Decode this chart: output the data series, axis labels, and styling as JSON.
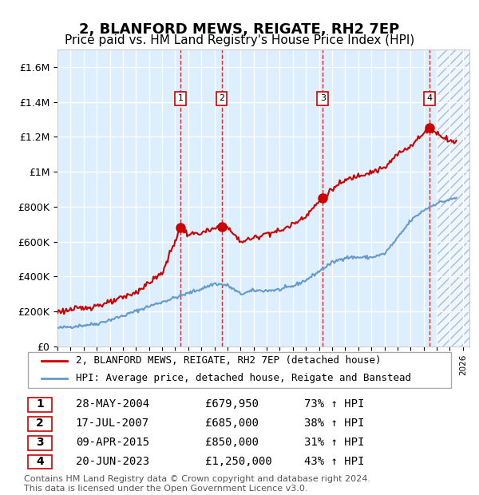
{
  "title": "2, BLANFORD MEWS, REIGATE, RH2 7EP",
  "subtitle": "Price paid vs. HM Land Registry's House Price Index (HPI)",
  "ylabel": "",
  "ylim": [
    0,
    1700000
  ],
  "yticks": [
    0,
    200000,
    400000,
    600000,
    800000,
    1000000,
    1200000,
    1400000,
    1600000
  ],
  "ytick_labels": [
    "£0",
    "£200K",
    "£400K",
    "£600K",
    "£800K",
    "£1M",
    "£1.2M",
    "£1.4M",
    "£1.6M"
  ],
  "xmin": 1995.0,
  "xmax": 2026.5,
  "hpi_color": "#6699cc",
  "price_color": "#cc0000",
  "sale_marker_color": "#cc0000",
  "dashed_line_color": "#cc0000",
  "background_color": "#ddeeff",
  "hatch_color": "#aabbdd",
  "legend_label_price": "2, BLANFORD MEWS, REIGATE, RH2 7EP (detached house)",
  "legend_label_hpi": "HPI: Average price, detached house, Reigate and Banstead",
  "sales": [
    {
      "num": 1,
      "date": "28-MAY-2004",
      "price": 679950,
      "pct": "73%",
      "x": 2004.4
    },
    {
      "num": 2,
      "date": "17-JUL-2007",
      "price": 685000,
      "pct": "38%",
      "x": 2007.55
    },
    {
      "num": 3,
      "date": "09-APR-2015",
      "price": 850000,
      "pct": "31%",
      "x": 2015.28
    },
    {
      "num": 4,
      "date": "20-JUN-2023",
      "price": 1250000,
      "pct": "43%",
      "x": 2023.47
    }
  ],
  "footer": "Contains HM Land Registry data © Crown copyright and database right 2024.\nThis data is licensed under the Open Government Licence v3.0.",
  "title_fontsize": 13,
  "subtitle_fontsize": 11,
  "tick_fontsize": 9,
  "legend_fontsize": 9,
  "table_fontsize": 10,
  "footer_fontsize": 8
}
